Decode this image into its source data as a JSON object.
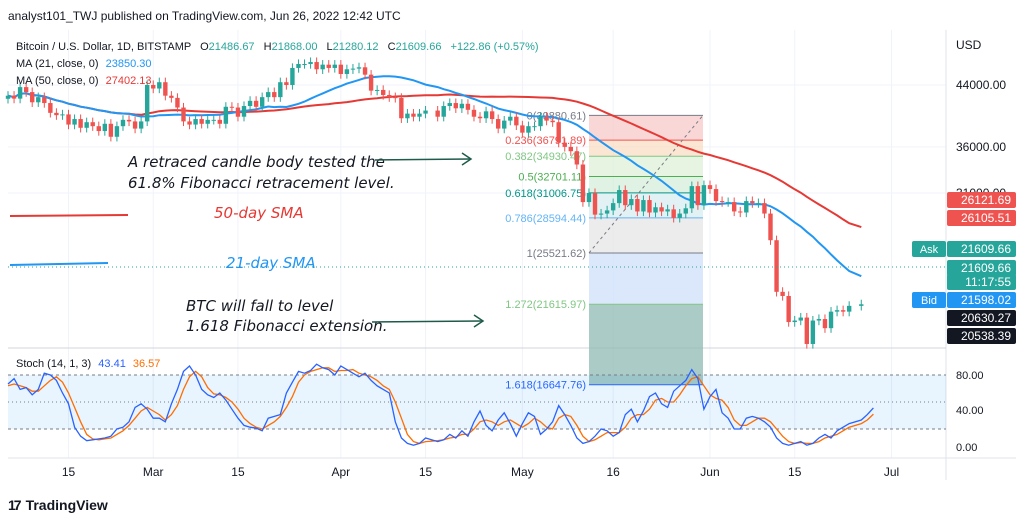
{
  "publisher": "analyst101_TWJ published on TradingView.com, Jun 26, 2022 12:42 UTC",
  "footer": {
    "brand": "TradingView",
    "logo_glyph": "17"
  },
  "header": {
    "symbol": "Bitcoin / U.S. Dollar, 1D, BITSTAMP",
    "ohlc": {
      "o_label": "O",
      "o": "21486.67",
      "h_label": "H",
      "h": "21868.00",
      "l_label": "L",
      "l": "21280.12",
      "c_label": "C",
      "c": "21609.66",
      "change": "+122.86 (+0.57%)"
    },
    "ma21": {
      "label": "MA (21, close, 0)",
      "value": "23850.30"
    },
    "ma50": {
      "label": "MA (50, close, 0)",
      "value": "27402.13"
    }
  },
  "colors": {
    "up": "#26a69a",
    "down": "#ef5350",
    "ma21": "#2196f3",
    "ma50": "#e53935",
    "stoch_k": "#2962ff",
    "stoch_d": "#ff6d00",
    "bg": "#ffffff",
    "grid": "#f0f3fa"
  },
  "annotations": {
    "retrace": [
      "A retraced candle body tested the",
      "61.8% Fibonacci retracement level."
    ],
    "sma50": "50-day SMA",
    "sma21": "21-day SMA",
    "extension": [
      "BTC will fall to level",
      "1.618 Fibonacci extension."
    ]
  },
  "price_axis": {
    "currency": "USD"
  },
  "stoch": {
    "label": "Stoch (14, 1, 3)",
    "k": "43.41",
    "d": "36.57",
    "axis": [
      "80.00",
      "40.00",
      "0.00"
    ]
  },
  "chart_data": {
    "type": "candlestick",
    "y_scale": "log",
    "price_ticks": [
      44000,
      36000,
      31000
    ],
    "price_tick_labels": [
      "44000.00",
      "36000.00",
      "31000.00"
    ],
    "price_ylim": [
      16000,
      56000
    ],
    "x_tick_labels": [
      "15",
      "Mar",
      "15",
      "Apr",
      "15",
      "May",
      "16",
      "Jun",
      "15",
      "Jul"
    ],
    "x_ticks": [
      "2022-02-15",
      "2022-03-01",
      "2022-03-15",
      "2022-04-01",
      "2022-04-15",
      "2022-05-01",
      "2022-05-16",
      "2022-06-01",
      "2022-06-15",
      "2022-07-01"
    ],
    "x_range": [
      "2022-02-05",
      "2022-07-10"
    ],
    "candles_close": [
      42500,
      42100,
      43700,
      43000,
      41600,
      42300,
      41500,
      40200,
      39900,
      40000,
      38700,
      39400,
      38300,
      39000,
      38500,
      37900,
      38800,
      37200,
      38500,
      39300,
      39100,
      38200,
      39100,
      44000,
      43500,
      44400,
      42500,
      42200,
      40900,
      39100,
      38700,
      39400,
      38800,
      39300,
      39300,
      38800,
      41000,
      40900,
      39700,
      41100,
      41800,
      41000,
      42300,
      43000,
      42300,
      44400,
      44000,
      46500,
      47100,
      47100,
      47400,
      46300,
      47000,
      46500,
      47000,
      45600,
      46300,
      46400,
      46600,
      45500,
      43200,
      43300,
      42600,
      42300,
      42200,
      39500,
      40100,
      39700,
      40100,
      40500,
      39700,
      41100,
      41500,
      40800,
      41400,
      40600,
      39700,
      39500,
      40400,
      39400,
      38200,
      39200,
      39700,
      38600,
      37700,
      38500,
      38500,
      39700,
      39200,
      39000,
      36500,
      36000,
      35500,
      34000,
      30100,
      31000,
      28900,
      29000,
      29300,
      30000,
      31300,
      29800,
      30400,
      29200,
      30300,
      29100,
      29600,
      29200,
      29400,
      28600,
      29000,
      29500,
      31700,
      29800,
      31800,
      31400,
      30200,
      30100,
      30100,
      29200,
      29100,
      30200,
      30000,
      30000,
      29000,
      26600,
      22500,
      22200,
      20400,
      20500,
      20700,
      19000,
      20500,
      20600,
      20000,
      21100,
      21200,
      21100,
      21500,
      21609.66
    ],
    "ma21_endpoints": {
      "start": 42800,
      "end": 23850.3
    },
    "ma50_endpoints": {
      "start": 42000,
      "end": 27402.13
    },
    "fibonacci": {
      "levels": [
        {
          "ratio": "0",
          "price": "39880.61"
        },
        {
          "ratio": "0.236",
          "price": "36791.89"
        },
        {
          "ratio": "0.382",
          "price": "34930.47"
        },
        {
          "ratio": "0.5",
          "price": "32701.11"
        },
        {
          "ratio": "0.618",
          "price": "31006.75"
        },
        {
          "ratio": "0.786",
          "price": "28594.44"
        },
        {
          "ratio": "1",
          "price": "25521.62"
        },
        {
          "ratio": "1.272",
          "price": "21615.97"
        },
        {
          "ratio": "1.618",
          "price": "16647.76"
        }
      ]
    },
    "price_labels": [
      {
        "value": "26121.69",
        "color": "#ef5350"
      },
      {
        "value": "26105.51",
        "color": "#ef5350"
      },
      {
        "value": "21609.66",
        "color": "#26a69a",
        "tag": "Ask"
      },
      {
        "value": "21609.66",
        "color": "#26a69a"
      },
      {
        "value": "11:17:55",
        "color": "#26a69a"
      },
      {
        "value": "21598.02",
        "color": "#2196f3",
        "tag": "Bid"
      },
      {
        "value": "20630.27",
        "color": "#131722"
      },
      {
        "value": "20538.39",
        "color": "#131722"
      }
    ],
    "stoch_k_values": [
      70,
      76,
      64,
      66,
      58,
      64,
      82,
      80,
      74,
      60,
      48,
      22,
      12,
      7,
      8,
      9,
      10,
      12,
      20,
      22,
      28,
      44,
      48,
      42,
      32,
      32,
      28,
      48,
      64,
      84,
      90,
      80,
      64,
      58,
      55,
      60,
      52,
      42,
      32,
      24,
      22,
      21,
      18,
      32,
      34,
      36,
      60,
      72,
      84,
      82,
      85,
      92,
      88,
      86,
      80,
      90,
      86,
      82,
      78,
      82,
      74,
      68,
      64,
      60,
      28,
      10,
      4,
      2,
      4,
      10,
      6,
      8,
      14,
      10,
      18,
      12,
      28,
      40,
      24,
      18,
      30,
      38,
      26,
      12,
      26,
      38,
      34,
      14,
      20,
      28,
      46,
      36,
      24,
      10,
      4,
      6,
      12,
      20,
      18,
      12,
      16,
      36,
      42,
      28,
      40,
      56,
      60,
      48,
      44,
      62,
      68,
      74,
      86,
      76,
      42,
      56,
      64,
      38,
      32,
      20,
      20,
      32,
      34,
      32,
      28,
      22,
      10,
      4,
      2,
      4,
      6,
      2,
      4,
      10,
      14,
      10,
      18,
      22,
      26,
      30,
      36,
      43.41
    ],
    "stoch_d_values": [
      68,
      70,
      68,
      66,
      62,
      62,
      68,
      74,
      78,
      72,
      60,
      44,
      28,
      14,
      9,
      8,
      9,
      10,
      14,
      18,
      24,
      32,
      40,
      44,
      40,
      36,
      30,
      36,
      46,
      64,
      78,
      84,
      78,
      66,
      59,
      58,
      55,
      50,
      42,
      32,
      26,
      22,
      20,
      24,
      28,
      34,
      44,
      56,
      72,
      80,
      84,
      86,
      88,
      88,
      84,
      85,
      85,
      86,
      82,
      80,
      78,
      74,
      68,
      64,
      50,
      32,
      14,
      6,
      4,
      6,
      7,
      8,
      10,
      11,
      14,
      14,
      20,
      28,
      30,
      28,
      24,
      28,
      30,
      26,
      22,
      26,
      32,
      28,
      22,
      20,
      32,
      36,
      34,
      24,
      12,
      6,
      8,
      12,
      16,
      16,
      16,
      22,
      32,
      36,
      36,
      42,
      52,
      54,
      50,
      50,
      58,
      68,
      76,
      78,
      68,
      58,
      54,
      52,
      44,
      30,
      24,
      24,
      28,
      32,
      32,
      28,
      20,
      12,
      6,
      4,
      5,
      4,
      4,
      6,
      10,
      12,
      14,
      18,
      22,
      26,
      30,
      36.57
    ],
    "stoch_ylim": [
      0,
      100
    ],
    "stoch_band": [
      20,
      80
    ]
  }
}
